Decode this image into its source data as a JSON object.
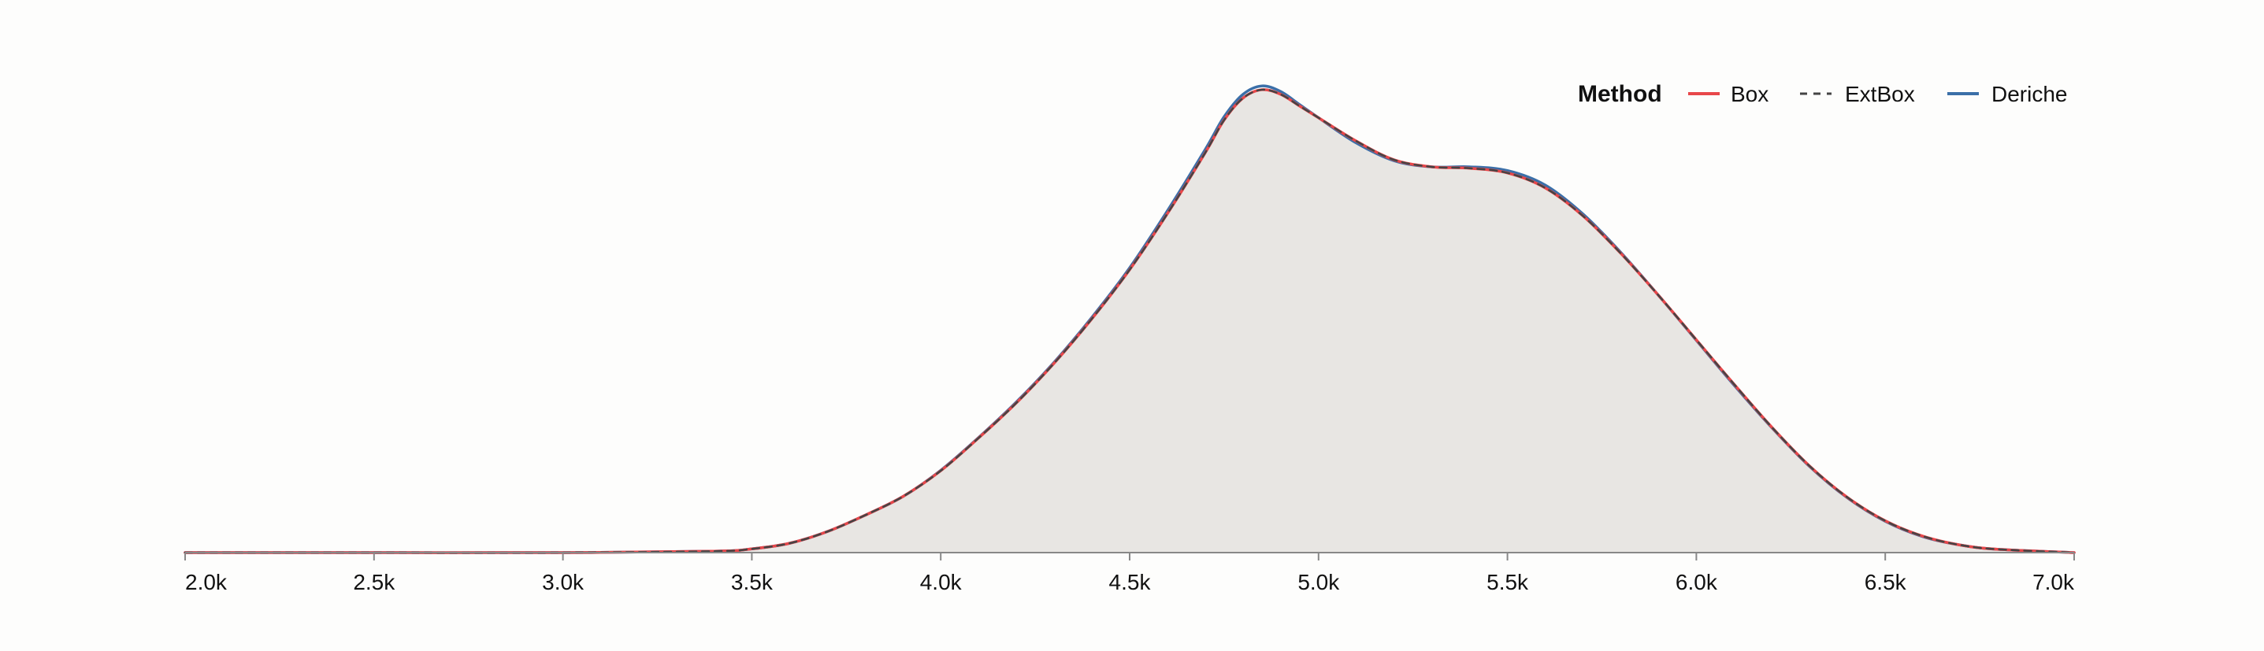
{
  "chart_data": {
    "type": "area",
    "title": "",
    "xlabel": "",
    "ylabel": "",
    "xlim": [
      2000,
      7000
    ],
    "ylim": [
      0,
      1.0
    ],
    "x_ticks": [
      2000,
      2500,
      3000,
      3500,
      4000,
      4500,
      5000,
      5500,
      6000,
      6500,
      7000
    ],
    "x_tick_labels": [
      "2.0k",
      "2.5k",
      "3.0k",
      "3.5k",
      "4.0k",
      "4.5k",
      "5.0k",
      "5.5k",
      "6.0k",
      "6.5k",
      "7.0k"
    ],
    "grid": false,
    "legend": {
      "title": "Method",
      "position": "top-right",
      "entries": [
        {
          "name": "Box",
          "color": "#e8474a",
          "dash": "solid"
        },
        {
          "name": "ExtBox",
          "color": "#444444",
          "dash": "dashed"
        },
        {
          "name": "Deriche",
          "color": "#3b6fa8",
          "dash": "solid"
        }
      ]
    },
    "fill_color": "#e8e6e3",
    "x": [
      2000,
      2500,
      3000,
      3400,
      3500,
      3600,
      3700,
      3800,
      3900,
      4000,
      4100,
      4200,
      4300,
      4400,
      4500,
      4600,
      4700,
      4750,
      4800,
      4850,
      4900,
      4950,
      5000,
      5100,
      5200,
      5300,
      5400,
      5500,
      5600,
      5700,
      5800,
      5900,
      6000,
      6100,
      6200,
      6300,
      6400,
      6500,
      6600,
      6700,
      6800,
      7000
    ],
    "series": [
      {
        "name": "Box",
        "values": [
          0.0,
          0.0,
          0.0,
          0.003,
          0.008,
          0.02,
          0.045,
          0.08,
          0.12,
          0.175,
          0.245,
          0.32,
          0.405,
          0.5,
          0.605,
          0.725,
          0.855,
          0.925,
          0.972,
          0.99,
          0.98,
          0.955,
          0.93,
          0.88,
          0.84,
          0.825,
          0.822,
          0.812,
          0.78,
          0.72,
          0.64,
          0.55,
          0.455,
          0.36,
          0.268,
          0.185,
          0.118,
          0.068,
          0.035,
          0.016,
          0.007,
          0.0
        ]
      },
      {
        "name": "ExtBox",
        "values": [
          0.0,
          0.0,
          0.0,
          0.003,
          0.008,
          0.02,
          0.045,
          0.08,
          0.12,
          0.175,
          0.245,
          0.32,
          0.405,
          0.5,
          0.605,
          0.725,
          0.855,
          0.925,
          0.972,
          0.99,
          0.98,
          0.955,
          0.93,
          0.88,
          0.84,
          0.825,
          0.822,
          0.812,
          0.78,
          0.72,
          0.64,
          0.55,
          0.455,
          0.36,
          0.268,
          0.185,
          0.118,
          0.068,
          0.035,
          0.016,
          0.007,
          0.0
        ]
      },
      {
        "name": "Deriche",
        "values": [
          0.0,
          0.0,
          0.0,
          0.003,
          0.008,
          0.02,
          0.045,
          0.08,
          0.12,
          0.176,
          0.246,
          0.322,
          0.407,
          0.503,
          0.609,
          0.731,
          0.862,
          0.932,
          0.98,
          0.998,
          0.986,
          0.958,
          0.93,
          0.876,
          0.838,
          0.825,
          0.825,
          0.817,
          0.786,
          0.724,
          0.642,
          0.55,
          0.454,
          0.358,
          0.267,
          0.184,
          0.117,
          0.067,
          0.034,
          0.016,
          0.007,
          0.0
        ]
      }
    ]
  }
}
